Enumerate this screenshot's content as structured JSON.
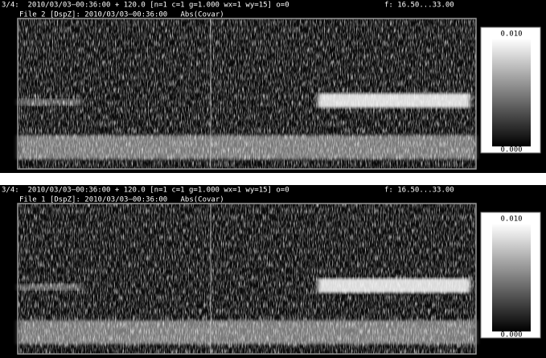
{
  "panels": [
    {
      "header": "3/4:  2010/03/03–00:36:00 + 120.0 [n=1 c=1 g=1.000 wx=1 wy=15] o=0",
      "frequency": "f: 16.50...33.00",
      "file_label": "File 2 [DspZ]: 2010/03/03–00:36:00   Abs(Covar)",
      "colorbar": {
        "max_label": "0.010",
        "min_label": "0.000"
      }
    },
    {
      "header": "3/4:  2010/03/03–00:36:00 + 120.0 [n=1 c=1 g=1.000 wx=1 wy=15] o=0",
      "frequency": "f: 16.50...33.00",
      "file_label": "File 1 [DspZ]: 2010/03/03–00:36:00   Abs(Covar)",
      "colorbar": {
        "max_label": "0.010",
        "min_label": "0.000"
      }
    }
  ]
}
